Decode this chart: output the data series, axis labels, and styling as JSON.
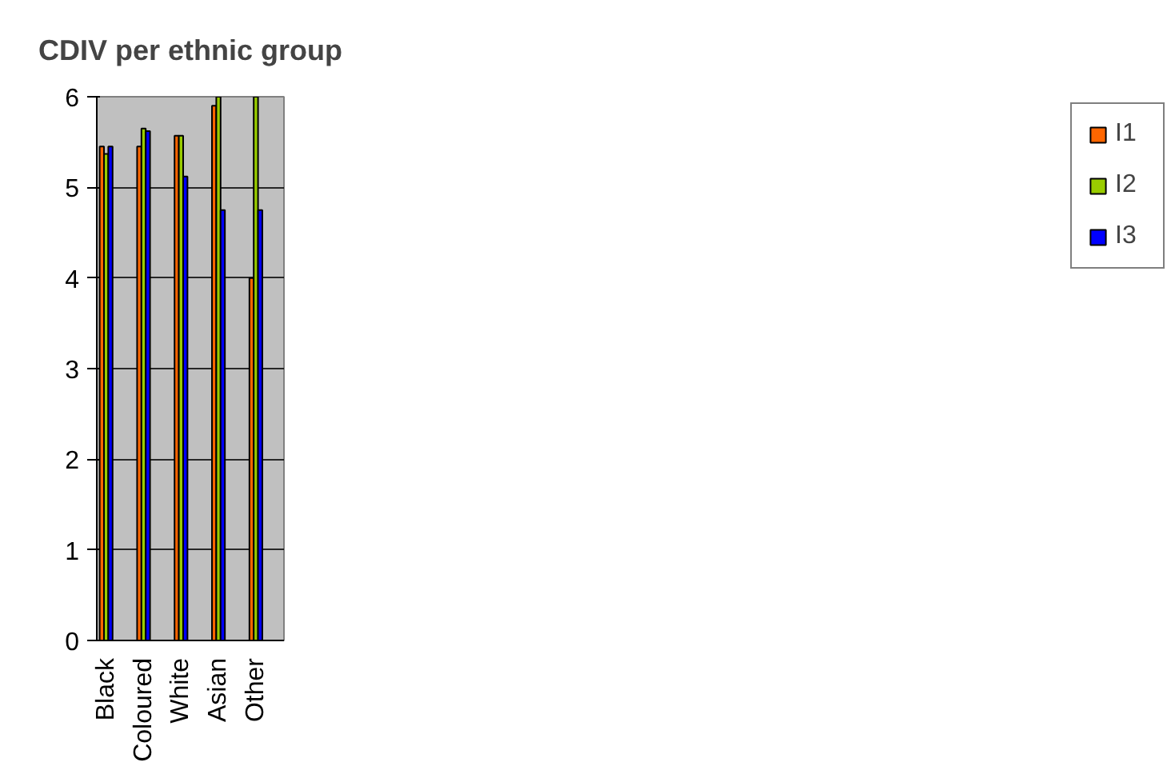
{
  "chart_data": {
    "type": "bar",
    "title": "CDIV per ethnic group",
    "categories": [
      "Black",
      null,
      "Coloured",
      null,
      "White",
      null,
      "Asian",
      null,
      "Other",
      null
    ],
    "series": [
      {
        "name": "I1",
        "color": "#ff6600",
        "values": [
          5.45,
          null,
          5.45,
          null,
          5.57,
          null,
          5.9,
          null,
          4.0,
          null
        ]
      },
      {
        "name": "I2",
        "color": "#99cc00",
        "values": [
          5.37,
          null,
          5.65,
          null,
          5.57,
          null,
          6.0,
          null,
          6.0,
          null
        ]
      },
      {
        "name": "I3",
        "color": "#0000ff",
        "values": [
          5.45,
          null,
          5.62,
          null,
          5.12,
          null,
          4.75,
          null,
          4.75,
          null
        ]
      }
    ],
    "ylim": [
      0,
      6
    ],
    "yticks": [
      0,
      1,
      2,
      3,
      4,
      5,
      6
    ],
    "grid": "y",
    "legend": "right"
  }
}
